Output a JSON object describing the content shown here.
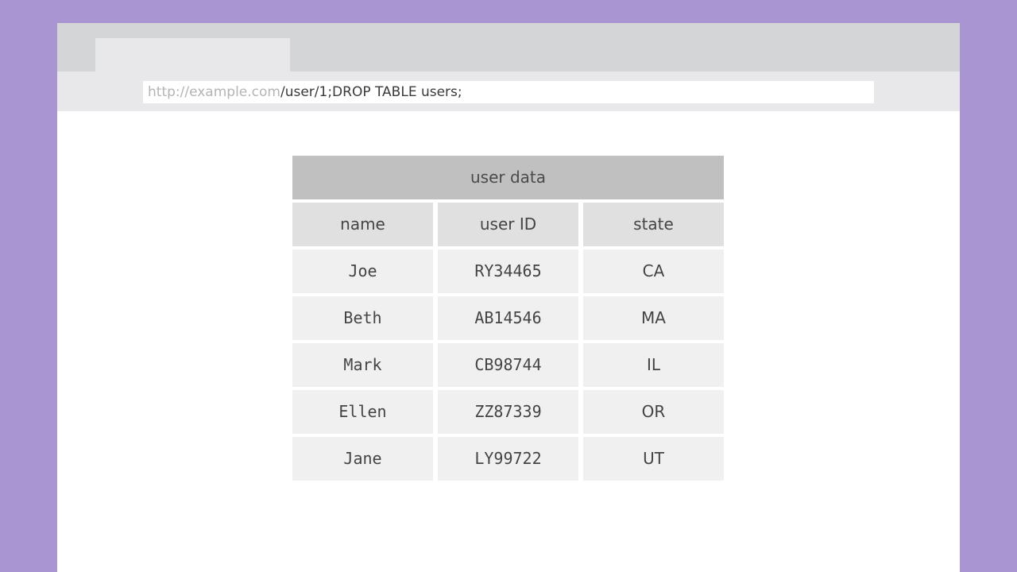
{
  "browser": {
    "url_host": "http://example.com",
    "url_path": "/user/1;DROP TABLE users;"
  },
  "table": {
    "title": "user data",
    "columns": [
      "name",
      "user ID",
      "state"
    ],
    "rows": [
      [
        "Joe",
        "RY34465",
        "CA"
      ],
      [
        "Beth",
        "AB14546",
        "MA"
      ],
      [
        "Mark",
        "CB98744",
        "IL"
      ],
      [
        "Ellen",
        "ZZ87339",
        "OR"
      ],
      [
        "Jane",
        "LY99722",
        "UT"
      ]
    ]
  }
}
